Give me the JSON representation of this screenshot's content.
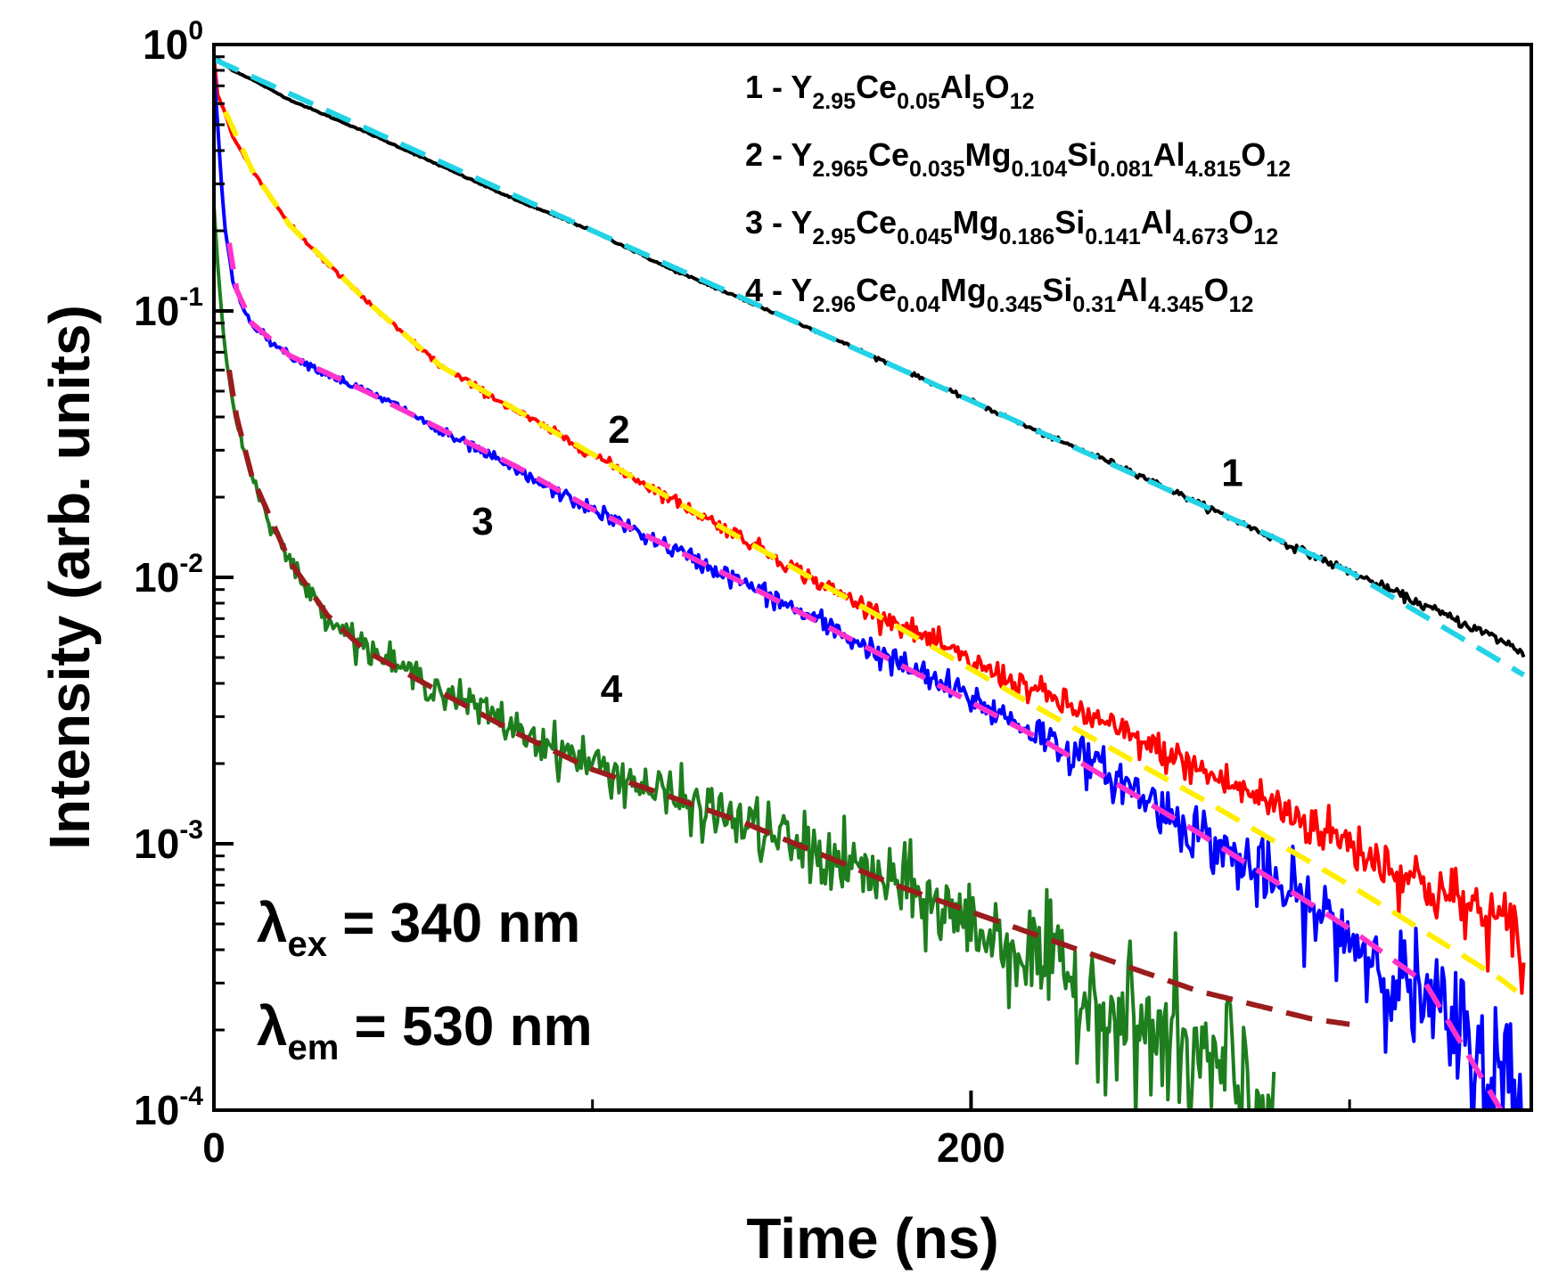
{
  "chart_data": {
    "type": "line",
    "title": "",
    "xlabel": "Time (ns)",
    "ylabel": "Intensity (arb. units)",
    "xlim": [
      0,
      348
    ],
    "ylim": [
      0.0001,
      1
    ],
    "y_scale": "log",
    "grid": false,
    "x_ticks": [
      {
        "value": 0,
        "label": "0"
      },
      {
        "value": 200,
        "label": "200"
      }
    ],
    "x_minor_ticks": [
      100,
      300
    ],
    "y_ticks": [
      {
        "value": 1,
        "base": "10",
        "exp": "0"
      },
      {
        "value": 0.1,
        "base": "10",
        "exp": "-1"
      },
      {
        "value": 0.01,
        "base": "10",
        "exp": "-2"
      },
      {
        "value": 0.001,
        "base": "10",
        "exp": "-3"
      },
      {
        "value": 0.0001,
        "base": "10",
        "exp": "-4"
      }
    ],
    "legend_position": "top-right",
    "legend": [
      {
        "id": "1",
        "prefix": "1 - ",
        "parts": [
          [
            "Y",
            ""
          ],
          [
            "2.95",
            "sub"
          ],
          [
            "Ce",
            ""
          ],
          [
            "0.05",
            "sub"
          ],
          [
            "Al",
            ""
          ],
          [
            "5",
            "sub"
          ],
          [
            "O",
            ""
          ],
          [
            "12",
            "sub"
          ]
        ]
      },
      {
        "id": "2",
        "prefix": "2 - ",
        "parts": [
          [
            "Y",
            ""
          ],
          [
            "2.965",
            "sub"
          ],
          [
            "Ce",
            ""
          ],
          [
            "0.035",
            "sub"
          ],
          [
            "Mg",
            ""
          ],
          [
            "0.104",
            "sub"
          ],
          [
            "Si",
            ""
          ],
          [
            "0.081",
            "sub"
          ],
          [
            "Al",
            ""
          ],
          [
            "4.815",
            "sub"
          ],
          [
            "O",
            ""
          ],
          [
            "12",
            "sub"
          ]
        ]
      },
      {
        "id": "3",
        "prefix": "3 - ",
        "parts": [
          [
            "Y",
            ""
          ],
          [
            "2.95",
            "sub"
          ],
          [
            "Ce",
            ""
          ],
          [
            "0.045",
            "sub"
          ],
          [
            "Mg",
            ""
          ],
          [
            "0.186",
            "sub"
          ],
          [
            "Si",
            ""
          ],
          [
            "0.141",
            "sub"
          ],
          [
            "Al",
            ""
          ],
          [
            "4.673",
            "sub"
          ],
          [
            "O",
            ""
          ],
          [
            "12",
            "sub"
          ]
        ]
      },
      {
        "id": "4",
        "prefix": "4 - ",
        "parts": [
          [
            "Y",
            ""
          ],
          [
            "2.96",
            "sub"
          ],
          [
            "Ce",
            ""
          ],
          [
            "0.04",
            "sub"
          ],
          [
            "Mg",
            ""
          ],
          [
            "0.345",
            "sub"
          ],
          [
            "Si",
            ""
          ],
          [
            "0.31",
            "sub"
          ],
          [
            "Al",
            ""
          ],
          [
            "4.345",
            "sub"
          ],
          [
            "O",
            ""
          ],
          [
            "12",
            "sub"
          ]
        ]
      }
    ],
    "series": [
      {
        "label": "1",
        "data_color": "#000000",
        "fit_color": "#22d3e6",
        "data_points": [
          [
            0,
            0.9
          ],
          [
            5,
            0.8
          ],
          [
            10,
            0.74
          ],
          [
            20,
            0.62
          ],
          [
            40,
            0.47
          ],
          [
            60,
            0.35
          ],
          [
            80,
            0.26
          ],
          [
            100,
            0.2
          ],
          [
            120,
            0.145
          ],
          [
            140,
            0.11
          ],
          [
            160,
            0.083
          ],
          [
            180,
            0.062
          ],
          [
            200,
            0.046
          ],
          [
            220,
            0.034
          ],
          [
            240,
            0.026
          ],
          [
            260,
            0.019
          ],
          [
            280,
            0.014
          ],
          [
            300,
            0.0105
          ],
          [
            320,
            0.0078
          ],
          [
            340,
            0.0058
          ],
          [
            346,
            0.0052
          ]
        ],
        "fit_points": [
          [
            0,
            0.88
          ],
          [
            100,
            0.2
          ],
          [
            200,
            0.046
          ],
          [
            300,
            0.0105
          ],
          [
            346,
            0.0043
          ]
        ]
      },
      {
        "label": "2",
        "data_color": "#ff0000",
        "fit_color": "#ffee00",
        "data_points": [
          [
            0,
            0.9
          ],
          [
            1,
            0.65
          ],
          [
            3,
            0.55
          ],
          [
            5,
            0.45
          ],
          [
            10,
            0.34
          ],
          [
            15,
            0.27
          ],
          [
            20,
            0.21
          ],
          [
            30,
            0.15
          ],
          [
            40,
            0.11
          ],
          [
            50,
            0.082
          ],
          [
            60,
            0.062
          ],
          [
            80,
            0.042
          ],
          [
            100,
            0.029
          ],
          [
            120,
            0.02
          ],
          [
            140,
            0.014
          ],
          [
            160,
            0.0095
          ],
          [
            180,
            0.0068
          ],
          [
            200,
            0.0048
          ],
          [
            220,
            0.0036
          ],
          [
            240,
            0.0026
          ],
          [
            260,
            0.0019
          ],
          [
            280,
            0.0014
          ],
          [
            300,
            0.001
          ],
          [
            320,
            0.0007
          ],
          [
            340,
            0.0005
          ],
          [
            346,
            0.0004
          ]
        ],
        "fit_points": [
          [
            3,
            0.56
          ],
          [
            10,
            0.34
          ],
          [
            20,
            0.21
          ],
          [
            40,
            0.11
          ],
          [
            60,
            0.062
          ],
          [
            100,
            0.029
          ],
          [
            140,
            0.0138
          ],
          [
            180,
            0.0066
          ],
          [
            220,
            0.0031
          ],
          [
            260,
            0.0015
          ],
          [
            300,
            0.0007
          ],
          [
            340,
            0.00031
          ],
          [
            344,
            0.00028
          ]
        ]
      },
      {
        "label": "3",
        "data_color": "#0000ff",
        "fit_color": "#ff33cc",
        "data_points": [
          [
            0,
            0.8
          ],
          [
            1,
            0.5
          ],
          [
            2,
            0.3
          ],
          [
            3,
            0.2
          ],
          [
            5,
            0.13
          ],
          [
            8,
            0.1
          ],
          [
            10,
            0.09
          ],
          [
            15,
            0.077
          ],
          [
            20,
            0.068
          ],
          [
            30,
            0.058
          ],
          [
            40,
            0.05
          ],
          [
            50,
            0.043
          ],
          [
            60,
            0.035
          ],
          [
            70,
            0.03
          ],
          [
            80,
            0.025
          ],
          [
            90,
            0.021
          ],
          [
            100,
            0.018
          ],
          [
            120,
            0.013
          ],
          [
            140,
            0.0095
          ],
          [
            160,
            0.0068
          ],
          [
            180,
            0.0048
          ],
          [
            200,
            0.0035
          ],
          [
            220,
            0.0025
          ],
          [
            240,
            0.0017
          ],
          [
            260,
            0.0011
          ],
          [
            280,
            0.0007
          ],
          [
            300,
            0.00045
          ],
          [
            320,
            0.00025
          ],
          [
            340,
            0.00013
          ],
          [
            346,
            0.0001
          ]
        ],
        "fit_points": [
          [
            4,
            0.18
          ],
          [
            6,
            0.12
          ],
          [
            10,
            0.09
          ],
          [
            20,
            0.068
          ],
          [
            40,
            0.05
          ],
          [
            60,
            0.036
          ],
          [
            80,
            0.026
          ],
          [
            100,
            0.018
          ],
          [
            140,
            0.0095
          ],
          [
            180,
            0.0048
          ],
          [
            220,
            0.0024
          ],
          [
            260,
            0.0011
          ],
          [
            300,
            0.00048
          ],
          [
            320,
            0.0003
          ],
          [
            340,
            0.0001
          ]
        ]
      },
      {
        "label": "4",
        "data_color": "#1e7e1e",
        "fit_color": "#9b1c1c",
        "data_points": [
          [
            0,
            0.25
          ],
          [
            1,
            0.15
          ],
          [
            2,
            0.1
          ],
          [
            3,
            0.07
          ],
          [
            5,
            0.045
          ],
          [
            8,
            0.03
          ],
          [
            10,
            0.024
          ],
          [
            15,
            0.016
          ],
          [
            20,
            0.0115
          ],
          [
            25,
            0.0088
          ],
          [
            30,
            0.0072
          ],
          [
            40,
            0.0055
          ],
          [
            50,
            0.0045
          ],
          [
            60,
            0.0038
          ],
          [
            70,
            0.0032
          ],
          [
            80,
            0.0027
          ],
          [
            90,
            0.0023
          ],
          [
            100,
            0.002
          ],
          [
            120,
            0.0015
          ],
          [
            140,
            0.0012
          ],
          [
            160,
            0.0009
          ],
          [
            180,
            0.0007
          ],
          [
            200,
            0.0005
          ],
          [
            220,
            0.00035
          ],
          [
            240,
            0.00022
          ],
          [
            260,
            0.00015
          ],
          [
            280,
            0.0001
          ]
        ],
        "fit_points": [
          [
            4,
            0.06
          ],
          [
            6,
            0.04
          ],
          [
            10,
            0.024
          ],
          [
            20,
            0.0115
          ],
          [
            30,
            0.0072
          ],
          [
            40,
            0.0053
          ],
          [
            60,
            0.0037
          ],
          [
            80,
            0.0026
          ],
          [
            100,
            0.0019
          ],
          [
            140,
            0.0012
          ],
          [
            180,
            0.0007
          ],
          [
            220,
            0.00044
          ],
          [
            260,
            0.00028
          ],
          [
            290,
            0.00022
          ],
          [
            300,
            0.00021
          ]
        ]
      }
    ],
    "curve_labels": [
      {
        "text": "1",
        "x": 269,
        "y": 0.022
      },
      {
        "text": "2",
        "x": 107,
        "y": 0.032
      },
      {
        "text": "3",
        "x": 71,
        "y": 0.0145
      },
      {
        "text": "4",
        "x": 105,
        "y": 0.0034
      }
    ],
    "annotations": [
      {
        "symbol": "λ",
        "sub": "ex",
        "text": " = 340 nm"
      },
      {
        "symbol": "λ",
        "sub": "em",
        "text": " = 530 nm"
      }
    ]
  }
}
